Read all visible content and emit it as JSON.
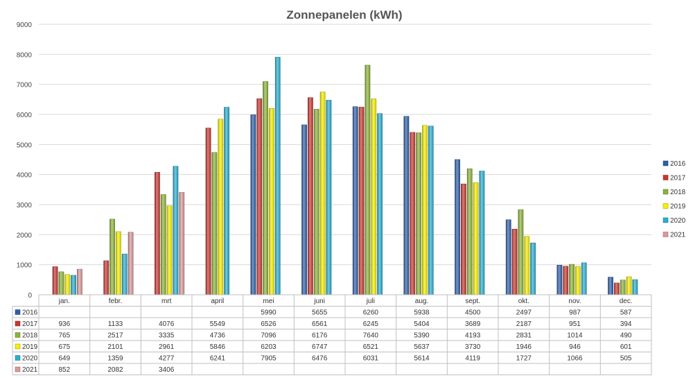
{
  "chart_data": {
    "type": "bar",
    "title": "Zonnepanelen (kWh)",
    "xlabel": "",
    "ylabel": "",
    "ylim": [
      0,
      9000
    ],
    "yticks": [
      0,
      1000,
      2000,
      3000,
      4000,
      5000,
      6000,
      7000,
      8000,
      9000
    ],
    "grid": true,
    "legend_position": "right",
    "has_data_table": true,
    "categories": [
      "jan.",
      "febr.",
      "mrt",
      "april",
      "mei",
      "juni",
      "juli",
      "aug.",
      "sept.",
      "okt.",
      "nov.",
      "dec."
    ],
    "series": [
      {
        "name": "2016",
        "color": "#2e5fa8",
        "values": [
          null,
          null,
          null,
          null,
          5990,
          5655,
          6260,
          5938,
          4500,
          2497,
          987,
          587
        ]
      },
      {
        "name": "2017",
        "color": "#c83732",
        "values": [
          936,
          1133,
          4076,
          5549,
          6526,
          6561,
          6245,
          5404,
          3689,
          2187,
          951,
          394
        ]
      },
      {
        "name": "2018",
        "color": "#8db33a",
        "values": [
          765,
          2517,
          3335,
          4736,
          7096,
          6176,
          7640,
          5390,
          4193,
          2831,
          1014,
          490
        ]
      },
      {
        "name": "2019",
        "color": "#f7f000",
        "values": [
          675,
          2101,
          2961,
          5846,
          6203,
          6747,
          6521,
          5637,
          3730,
          1946,
          946,
          601
        ]
      },
      {
        "name": "2020",
        "color": "#2aaed0",
        "values": [
          649,
          1359,
          4277,
          6241,
          7905,
          6476,
          6031,
          5614,
          4119,
          1727,
          1066,
          505
        ]
      },
      {
        "name": "2021",
        "color": "#d99a9a",
        "values": [
          852,
          2082,
          3406,
          null,
          null,
          null,
          null,
          null,
          null,
          null,
          null,
          null
        ]
      }
    ]
  }
}
